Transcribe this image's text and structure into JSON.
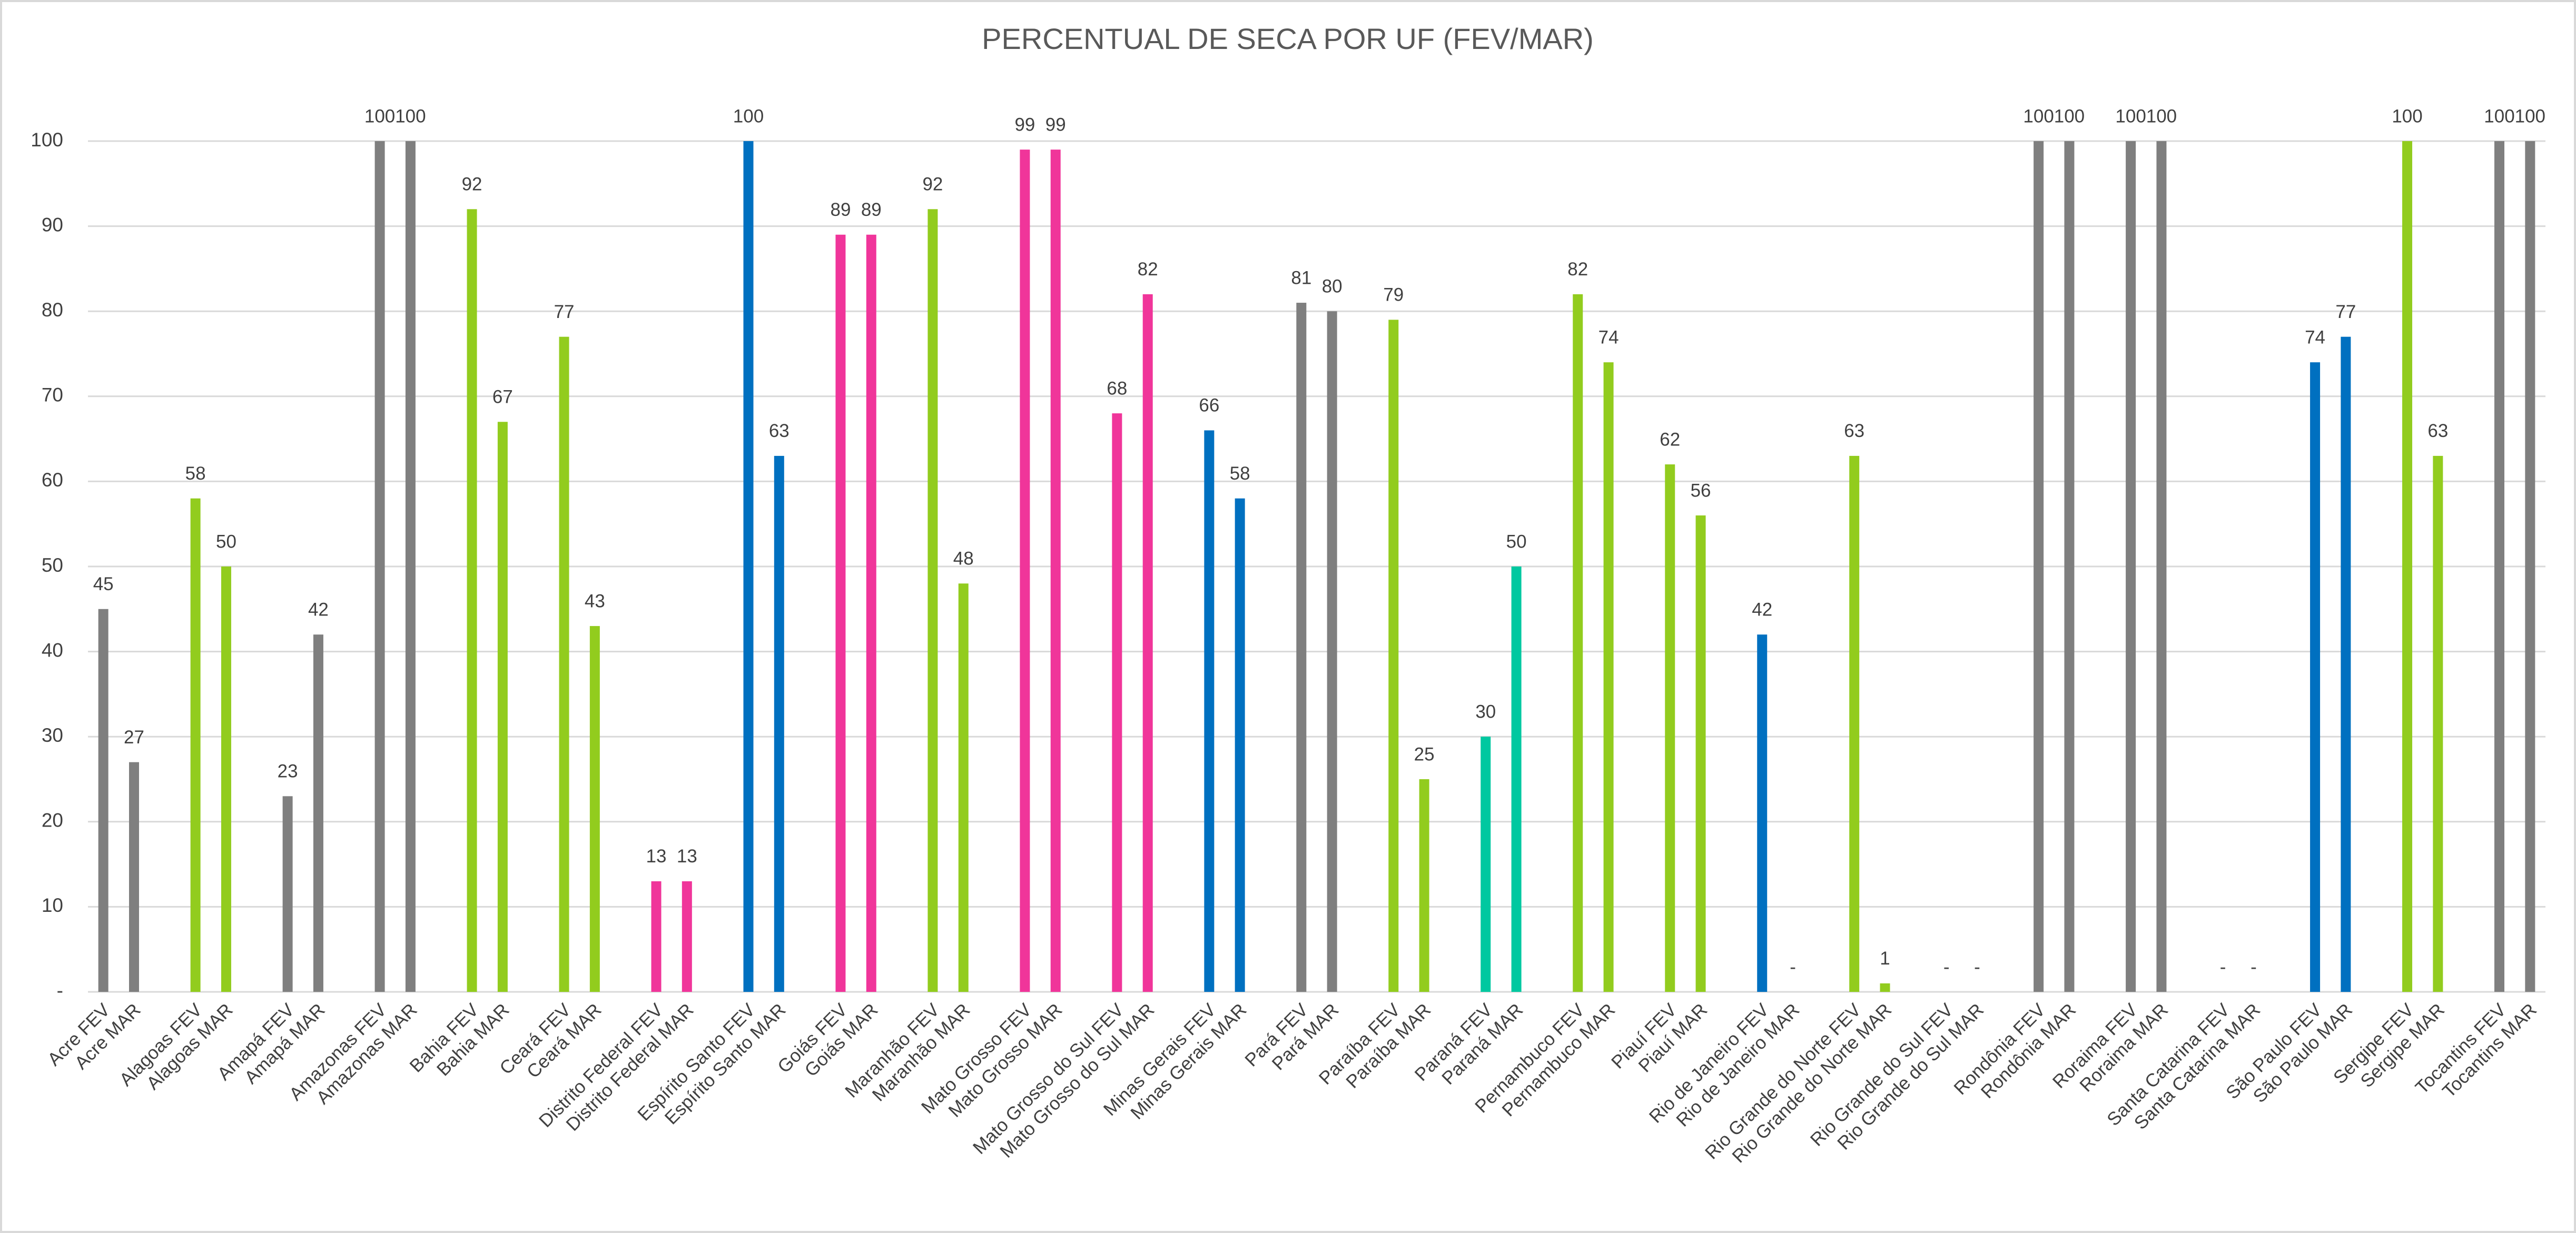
{
  "chart_data": {
    "type": "bar",
    "title": "PERCENTUAL DE SECA POR UF (FEV/MAR)",
    "categories": [
      "Acre FEV",
      "Acre MAR",
      null,
      "Alagoas FEV",
      "Alagoas MAR",
      null,
      "Amapá FEV",
      "Amapá MAR",
      null,
      "Amazonas FEV",
      "Amazonas MAR",
      null,
      "Bahia FEV",
      "Bahia MAR",
      null,
      "Ceará FEV",
      "Ceará MAR",
      null,
      "Distrito Federal FEV",
      "Distrito Federal MAR",
      null,
      "Espírito Santo FEV",
      "Espírito Santo MAR",
      null,
      "Goiás FEV",
      "Goiás MAR",
      null,
      "Maranhão FEV",
      "Maranhão MAR",
      null,
      "Mato Grosso FEV",
      "Mato Grosso MAR",
      null,
      "Mato Grosso do Sul FEV",
      "Mato Grosso do Sul MAR",
      null,
      "Minas Gerais FEV",
      "Minas Gerais MAR",
      null,
      "Pará FEV",
      "Pará MAR",
      null,
      "Paraíba FEV",
      "Paraíba MAR",
      null,
      "Paraná FEV",
      "Paraná MAR",
      null,
      "Pernambuco FEV",
      "Pernambuco MAR",
      null,
      "Piauí FEV",
      "Piauí MAR",
      null,
      "Rio de Janeiro FEV",
      "Rio de Janeiro MAR",
      null,
      "Rio Grande do Norte FEV",
      "Rio Grande do Norte MAR",
      null,
      "Rio Grande do Sul FEV",
      "Rio Grande do Sul MAR",
      null,
      "Rondônia FEV",
      "Rondônia MAR",
      null,
      "Roraima FEV",
      "Roraima MAR",
      null,
      "Santa Catarina FEV",
      "Santa Catarina MAR",
      null,
      "São Paulo FEV",
      "São Paulo MAR",
      null,
      "Sergipe FEV",
      "Sergipe MAR",
      null,
      "Tocantins FEV",
      "Tocantins MAR"
    ],
    "values": [
      45,
      27,
      null,
      58,
      50,
      null,
      23,
      42,
      null,
      100,
      100,
      null,
      92,
      67,
      null,
      77,
      43,
      null,
      13,
      13,
      null,
      100,
      63,
      null,
      89,
      89,
      null,
      92,
      48,
      null,
      99,
      99,
      null,
      68,
      82,
      null,
      66,
      58,
      null,
      81,
      80,
      null,
      79,
      25,
      null,
      30,
      50,
      null,
      82,
      74,
      null,
      62,
      56,
      null,
      42,
      0,
      null,
      63,
      1,
      null,
      0,
      0,
      null,
      100,
      100,
      null,
      100,
      100,
      null,
      0,
      0,
      null,
      74,
      77,
      null,
      100,
      63,
      null,
      100,
      100
    ],
    "value_labels": [
      "45",
      "27",
      null,
      "58",
      "50",
      null,
      "23",
      "42",
      null,
      "100",
      "100",
      null,
      "92",
      "67",
      null,
      "77",
      "43",
      null,
      "13",
      "13",
      null,
      "100",
      "63",
      null,
      "89",
      "89",
      null,
      "92",
      "48",
      null,
      "99",
      "99",
      null,
      "68",
      "82",
      null,
      "66",
      "58",
      null,
      "81",
      "80",
      null,
      "79",
      "25",
      null,
      "30",
      "50",
      null,
      "82",
      "74",
      null,
      "62",
      "56",
      null,
      "42",
      "-",
      null,
      "63",
      "1",
      null,
      "-",
      "-",
      null,
      "100",
      "100",
      null,
      "100",
      "100",
      null,
      "-",
      "-",
      null,
      "74",
      "77",
      null,
      "100",
      "63",
      null,
      "100",
      "100"
    ],
    "colors": [
      "#7f7f7f",
      "#7f7f7f",
      null,
      "#92cc1e",
      "#92cc1e",
      null,
      "#7f7f7f",
      "#7f7f7f",
      null,
      "#7f7f7f",
      "#7f7f7f",
      null,
      "#92cc1e",
      "#92cc1e",
      null,
      "#92cc1e",
      "#92cc1e",
      null,
      "#f0359a",
      "#f0359a",
      null,
      "#0070c0",
      "#0070c0",
      null,
      "#f0359a",
      "#f0359a",
      null,
      "#92cc1e",
      "#92cc1e",
      null,
      "#f0359a",
      "#f0359a",
      null,
      "#f0359a",
      "#f0359a",
      null,
      "#0070c0",
      "#0070c0",
      null,
      "#7f7f7f",
      "#7f7f7f",
      null,
      "#92cc1e",
      "#92cc1e",
      null,
      "#00c8a0",
      "#00c8a0",
      null,
      "#92cc1e",
      "#92cc1e",
      null,
      "#92cc1e",
      "#92cc1e",
      null,
      "#0070c0",
      "#0070c0",
      null,
      "#92cc1e",
      "#92cc1e",
      null,
      "#7f7f7f",
      "#7f7f7f",
      null,
      "#7f7f7f",
      "#7f7f7f",
      null,
      "#7f7f7f",
      "#7f7f7f",
      null,
      "#7f7f7f",
      "#7f7f7f",
      null,
      "#0070c0",
      "#0070c0",
      null,
      "#92cc1e",
      "#92cc1e",
      null,
      "#7f7f7f",
      "#7f7f7f"
    ],
    "ylim": [
      0,
      100
    ],
    "yticks": [
      {
        "value": 0,
        "label": "-"
      },
      10,
      20,
      30,
      40,
      50,
      60,
      70,
      80,
      90,
      100
    ],
    "grid": true
  }
}
